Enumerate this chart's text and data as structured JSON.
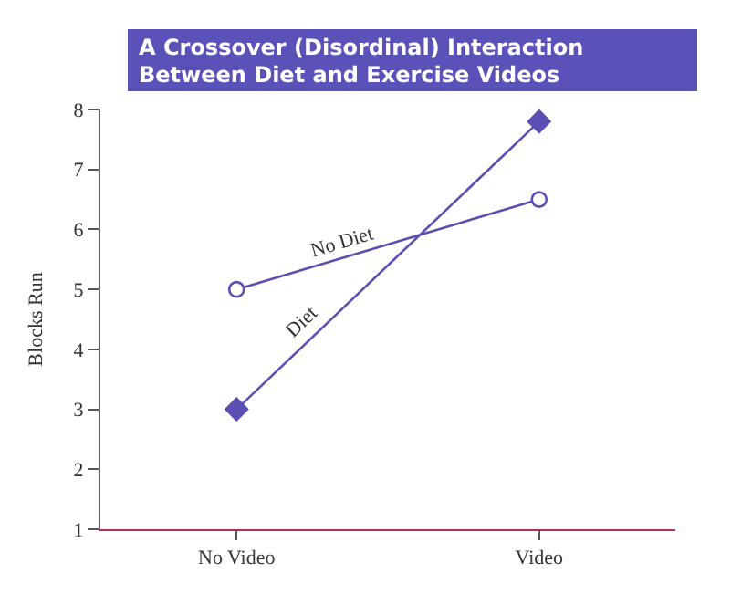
{
  "chart_data": {
    "type": "line",
    "title": "A Crossover (Disordinal) Interaction Between Diet and Exercise Videos",
    "ylabel": "Blocks Run",
    "categories": [
      "No Video",
      "Video"
    ],
    "series": [
      {
        "name": "No Diet",
        "color": "#5b4fb3",
        "values": [
          5,
          6.5
        ],
        "marker": "circle"
      },
      {
        "name": "Diet",
        "color": "#5b4fb3",
        "values": [
          3,
          7.8
        ],
        "marker": "diamond"
      }
    ],
    "ylim": [
      1,
      8
    ],
    "yticks": [
      1,
      2,
      3,
      4,
      5,
      6,
      7,
      8
    ],
    "grid": false,
    "legend": false
  }
}
